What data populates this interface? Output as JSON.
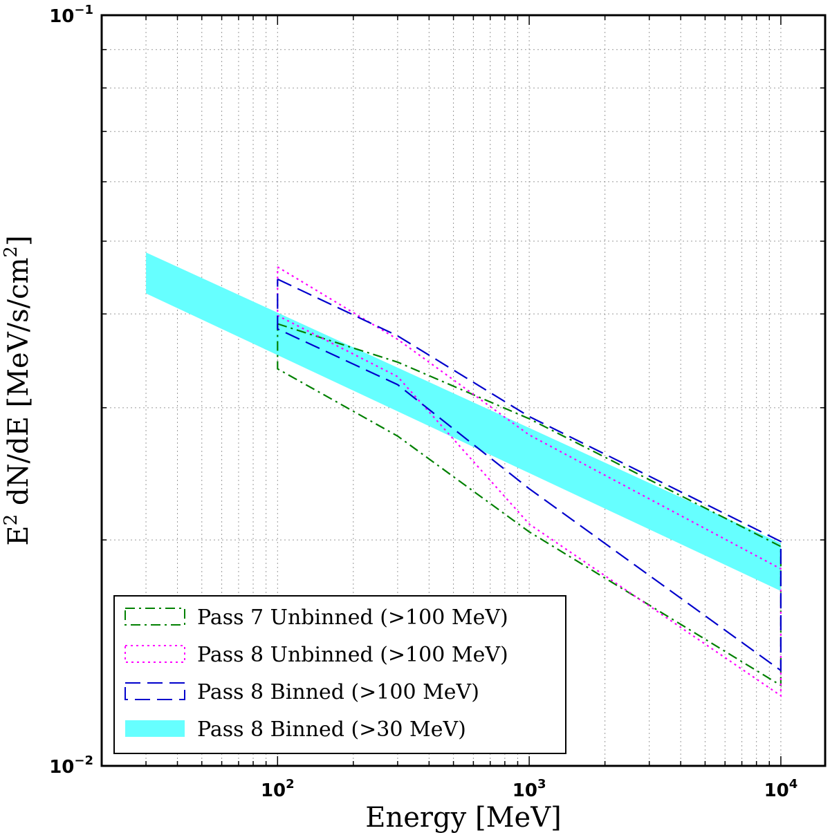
{
  "chart_data": {
    "type": "line",
    "title": "",
    "xlabel": "Energy [MeV]",
    "ylabel_main": "E",
    "ylabel_sup": "2",
    "ylabel_rest": " dN/dE [MeV/s/cm",
    "ylabel_sup2": "2",
    "ylabel_end": "]",
    "xscale": "log",
    "yscale": "log",
    "xlim": [
      20,
      15000
    ],
    "ylim": [
      0.01,
      0.1
    ],
    "grid": true,
    "legend_position": "lower-left",
    "x_ticks": [
      {
        "value": 100,
        "base": "10",
        "exp": "2"
      },
      {
        "value": 1000,
        "base": "10",
        "exp": "3"
      },
      {
        "value": 10000,
        "base": "10",
        "exp": "4"
      }
    ],
    "y_ticks": [
      {
        "value": 0.1,
        "base": "10",
        "exp": "−1"
      },
      {
        "value": 0.01,
        "base": "10",
        "exp": "−2"
      }
    ],
    "series": [
      {
        "name": "Pass 7 Unbinned (>100 MeV)",
        "style": "dashdot",
        "color": "#008000",
        "upper": [
          [
            100,
            0.0388
          ],
          [
            300,
            0.0345
          ],
          [
            1000,
            0.029
          ],
          [
            10000,
            0.0196
          ]
        ],
        "lower": [
          [
            100,
            0.0338
          ],
          [
            300,
            0.0275
          ],
          [
            1000,
            0.0205
          ],
          [
            10000,
            0.0128
          ]
        ]
      },
      {
        "name": "Pass 8 Unbinned (>100 MeV)",
        "style": "dotted",
        "color": "#ff00ff",
        "upper": [
          [
            100,
            0.0462
          ],
          [
            300,
            0.037
          ],
          [
            1000,
            0.0276
          ],
          [
            10000,
            0.0183
          ]
        ],
        "lower": [
          [
            100,
            0.0398
          ],
          [
            300,
            0.033
          ],
          [
            1000,
            0.021
          ],
          [
            10000,
            0.0124
          ]
        ]
      },
      {
        "name": "Pass 8 Binned (>100 MeV)",
        "style": "dashed",
        "color": "#0000cc",
        "upper": [
          [
            100,
            0.0445
          ],
          [
            300,
            0.0374
          ],
          [
            1000,
            0.0292
          ],
          [
            10000,
            0.0199
          ]
        ],
        "lower": [
          [
            100,
            0.0382
          ],
          [
            300,
            0.0322
          ],
          [
            1000,
            0.0234
          ],
          [
            10000,
            0.0134
          ]
        ]
      },
      {
        "name": "Pass 8 Binned (>30 MeV)",
        "style": "band",
        "color": "#66ffff",
        "upper": [
          [
            30,
            0.0483
          ],
          [
            10000,
            0.0198
          ]
        ],
        "lower": [
          [
            30,
            0.0426
          ],
          [
            10000,
            0.0171
          ]
        ]
      }
    ]
  }
}
